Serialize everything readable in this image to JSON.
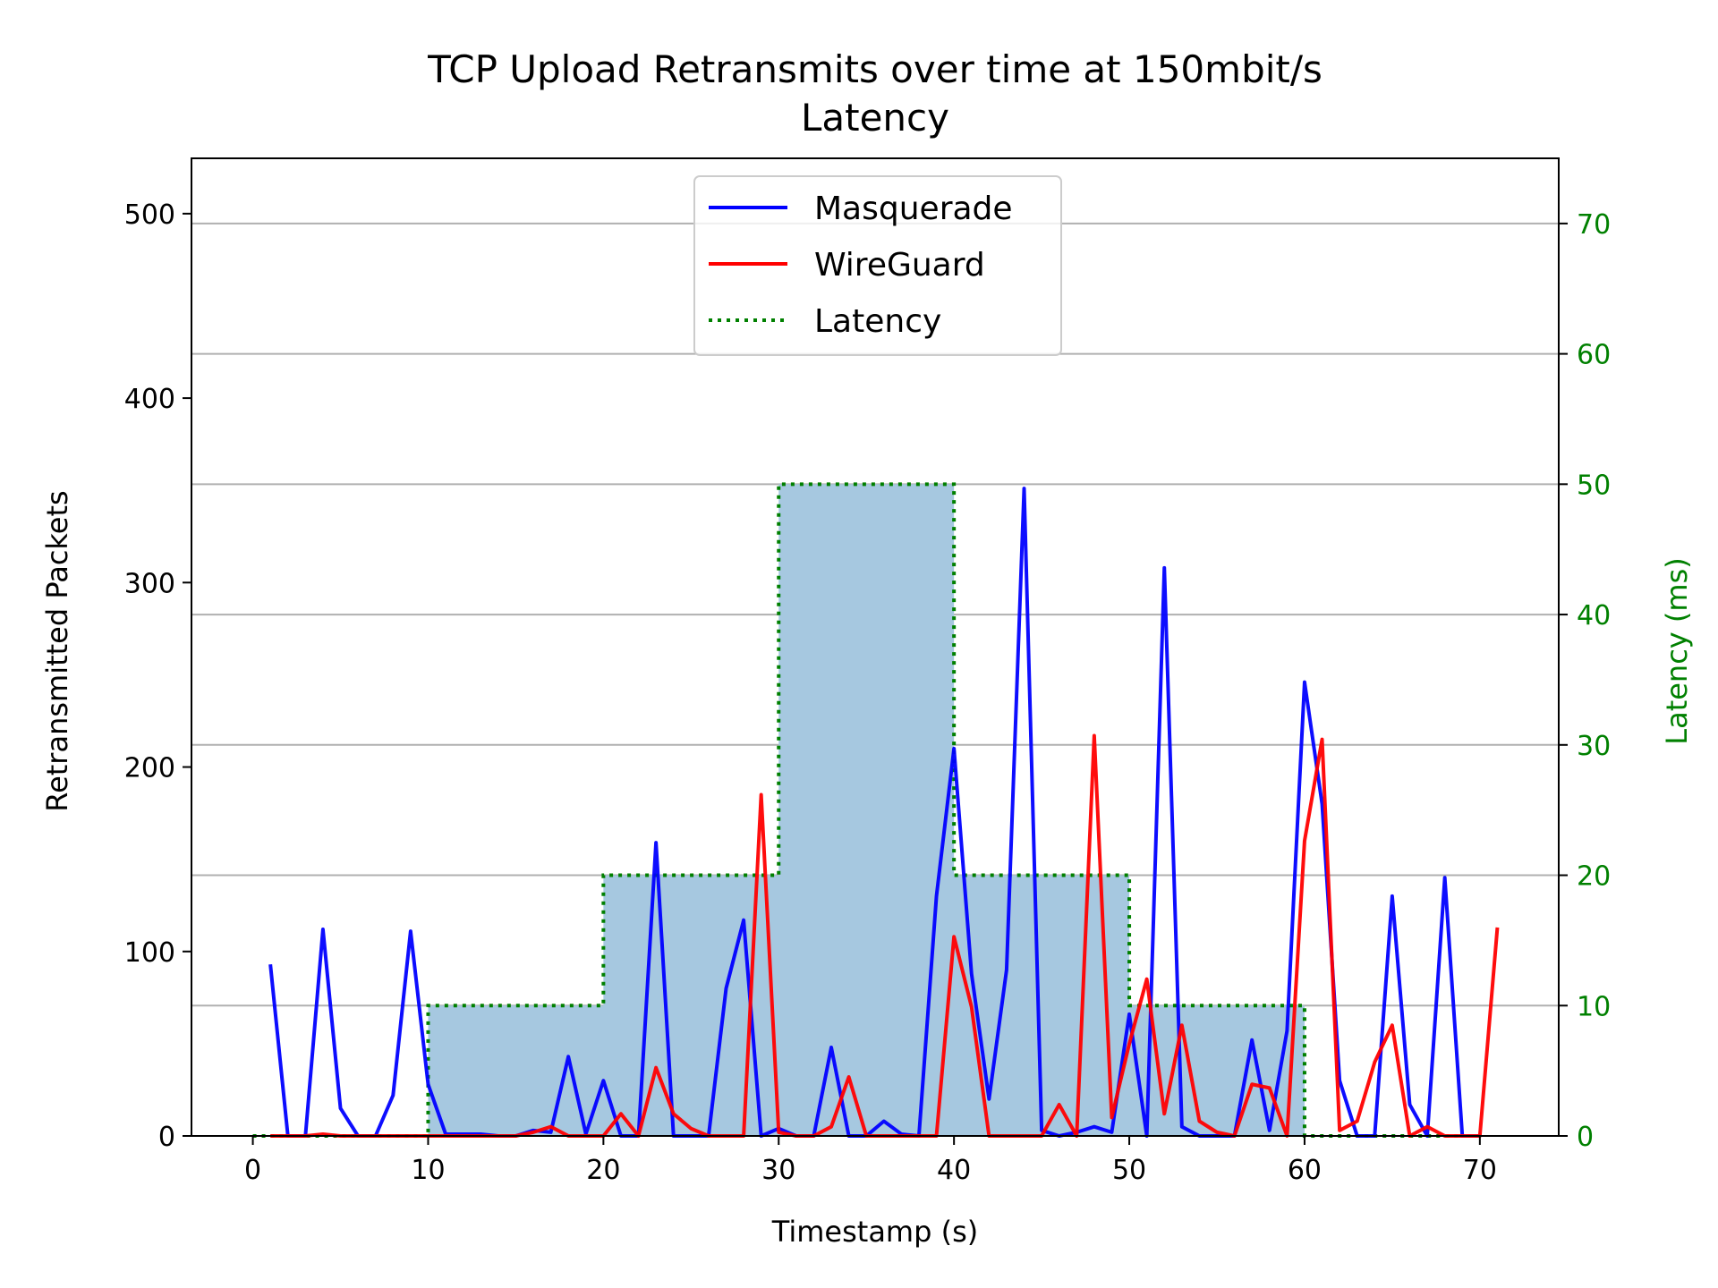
{
  "chart_data": {
    "type": "line",
    "title_line1": "TCP Upload Retransmits over time at 150mbit/s",
    "title_line2": "Latency",
    "xlabel": "Timestamp (s)",
    "ylabel": "Retransmitted Packets",
    "y2label": "Latency (ms)",
    "xlim": [
      -3.5,
      74.5
    ],
    "ylim": [
      0,
      530
    ],
    "y2lim": [
      0,
      75
    ],
    "xticks": [
      0,
      10,
      20,
      30,
      40,
      50,
      60,
      70
    ],
    "yticks": [
      0,
      100,
      200,
      300,
      400,
      500
    ],
    "y2ticks": [
      0,
      10,
      20,
      30,
      40,
      50,
      60,
      70
    ],
    "grid": "horizontal on latency axis",
    "legend_placement": "top-center",
    "legend": [
      {
        "label": "Masquerade",
        "color": "#0000ff",
        "style": "solid"
      },
      {
        "label": "WireGuard",
        "color": "#ff0000",
        "style": "solid"
      },
      {
        "label": "Latency",
        "color": "#008000",
        "style": "dotted"
      }
    ],
    "colors": {
      "masquerade": "#0000ff",
      "wireguard": "#ff0000",
      "latency": "#008000",
      "latency_fill": "#a6c8e0",
      "overlap": "#9b3050",
      "grid": "#b0b0b0"
    },
    "latency_steps": [
      {
        "from": 0,
        "to": 10,
        "value": 0
      },
      {
        "from": 10,
        "to": 20,
        "value": 10
      },
      {
        "from": 20,
        "to": 30,
        "value": 20
      },
      {
        "from": 30,
        "to": 40,
        "value": 50
      },
      {
        "from": 40,
        "to": 50,
        "value": 20
      },
      {
        "from": 50,
        "to": 60,
        "value": 10
      },
      {
        "from": 60,
        "to": 70,
        "value": 0
      }
    ],
    "series": [
      {
        "name": "Masquerade",
        "x": [
          1,
          2,
          3,
          4,
          5,
          6,
          7,
          8,
          9,
          10,
          11,
          12,
          13,
          14,
          15,
          16,
          17,
          18,
          19,
          20,
          21,
          22,
          23,
          24,
          25,
          26,
          27,
          28,
          29,
          30,
          31,
          32,
          33,
          34,
          35,
          36,
          37,
          38,
          39,
          40,
          41,
          42,
          43,
          44,
          45,
          46,
          47,
          48,
          49,
          50,
          51,
          52,
          53,
          54,
          55,
          56,
          57,
          58,
          59,
          60,
          61,
          62,
          63,
          64,
          65,
          66,
          67,
          68,
          69,
          70
        ],
        "y": [
          93,
          0,
          0,
          112,
          15,
          0,
          0,
          22,
          111,
          28,
          1,
          1,
          1,
          0,
          0,
          3,
          2,
          43,
          1,
          30,
          0,
          0,
          159,
          0,
          0,
          0,
          80,
          117,
          0,
          4,
          0,
          0,
          48,
          0,
          0,
          8,
          1,
          0,
          130,
          210,
          88,
          20,
          90,
          351,
          3,
          0,
          2,
          5,
          2,
          66,
          0,
          308,
          5,
          0,
          0,
          0,
          52,
          3,
          57,
          246,
          180,
          30,
          0,
          0,
          130,
          17,
          0,
          140,
          0,
          0
        ]
      },
      {
        "name": "WireGuard",
        "x": [
          1,
          2,
          3,
          4,
          5,
          6,
          7,
          8,
          9,
          10,
          11,
          12,
          13,
          14,
          15,
          16,
          17,
          18,
          19,
          20,
          21,
          22,
          23,
          24,
          25,
          26,
          27,
          28,
          29,
          30,
          31,
          32,
          33,
          34,
          35,
          36,
          37,
          38,
          39,
          40,
          41,
          42,
          43,
          44,
          45,
          46,
          47,
          48,
          49,
          50,
          51,
          52,
          53,
          54,
          55,
          56,
          57,
          58,
          59,
          60,
          61,
          62,
          63,
          64,
          65,
          66,
          67,
          68,
          69,
          70,
          71
        ],
        "y": [
          0,
          0,
          0,
          1,
          0,
          0,
          0,
          0,
          0,
          0,
          0,
          0,
          0,
          0,
          0,
          2,
          5,
          0,
          0,
          0,
          12,
          0,
          37,
          12,
          4,
          0,
          0,
          0,
          185,
          2,
          0,
          0,
          5,
          32,
          0,
          0,
          0,
          0,
          0,
          108,
          70,
          0,
          0,
          0,
          0,
          17,
          0,
          217,
          10,
          50,
          85,
          12,
          60,
          8,
          2,
          0,
          28,
          26,
          0,
          160,
          215,
          3,
          8,
          40,
          60,
          0,
          5,
          0,
          0,
          0,
          113
        ]
      }
    ]
  }
}
